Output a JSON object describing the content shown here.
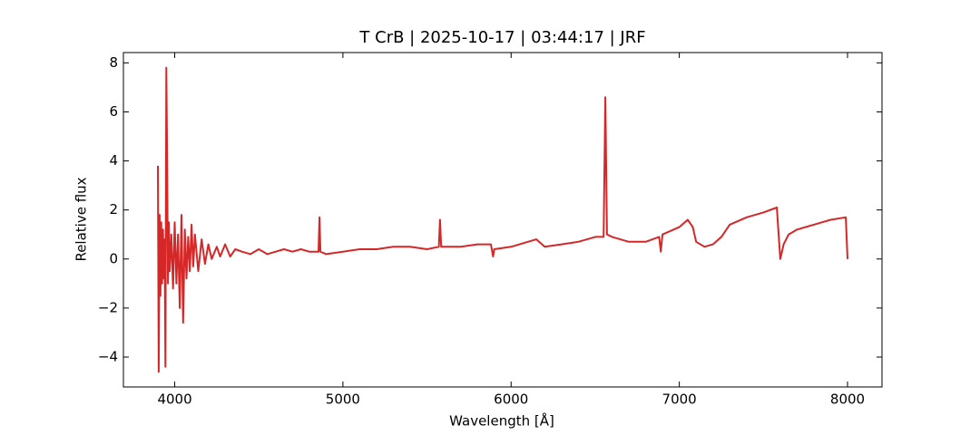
{
  "chart_data": {
    "type": "line",
    "title": "T CrB | 2025-10-17 | 03:44:17 | JRF",
    "xlabel": "Wavelength [Å]",
    "ylabel": "Relative flux",
    "xlim": [
      3695,
      8205
    ],
    "ylim": [
      -5.22,
      8.42
    ],
    "xticks": [
      4000,
      5000,
      6000,
      7000,
      8000
    ],
    "yticks": [
      {
        "value": -4,
        "label": "−4"
      },
      {
        "value": -2,
        "label": "−2"
      },
      0,
      2,
      4,
      6,
      8
    ],
    "grid": false,
    "series": [
      {
        "name": "T CrB",
        "color": "#d62728",
        "x": [
          3900,
          3905,
          3910,
          3915,
          3920,
          3925,
          3930,
          3935,
          3940,
          3945,
          3950,
          3955,
          3960,
          3965,
          3970,
          3980,
          3990,
          4000,
          4010,
          4020,
          4030,
          4040,
          4050,
          4060,
          4070,
          4080,
          4090,
          4100,
          4110,
          4120,
          4140,
          4160,
          4180,
          4200,
          4220,
          4250,
          4270,
          4300,
          4330,
          4360,
          4400,
          4450,
          4500,
          4550,
          4600,
          4650,
          4700,
          4750,
          4800,
          4855,
          4861,
          4866,
          4900,
          5000,
          5100,
          5200,
          5300,
          5400,
          5500,
          5570,
          5577,
          5584,
          5700,
          5800,
          5880,
          5893,
          5900,
          6000,
          6100,
          6150,
          6200,
          6300,
          6400,
          6500,
          6550,
          6560,
          6570,
          6600,
          6700,
          6800,
          6880,
          6890,
          6900,
          7000,
          7050,
          7080,
          7100,
          7150,
          7200,
          7250,
          7300,
          7400,
          7500,
          7580,
          7600,
          7620,
          7650,
          7700,
          7800,
          7850,
          7900,
          7990,
          8000
        ],
        "values": [
          3.8,
          -4.6,
          1.8,
          -1.5,
          1.5,
          -1.0,
          1.2,
          -0.8,
          0.8,
          -4.4,
          7.8,
          4.0,
          -1.0,
          1.5,
          -0.5,
          1.0,
          -1.2,
          1.5,
          -1.0,
          1.0,
          -2.0,
          1.8,
          -2.6,
          1.2,
          -0.8,
          0.9,
          -0.5,
          1.4,
          -0.3,
          1.0,
          -0.5,
          0.8,
          -0.2,
          0.6,
          0.0,
          0.5,
          0.1,
          0.6,
          0.1,
          0.4,
          0.3,
          0.2,
          0.4,
          0.2,
          0.3,
          0.4,
          0.3,
          0.4,
          0.3,
          0.3,
          1.7,
          0.3,
          0.2,
          0.3,
          0.4,
          0.4,
          0.5,
          0.5,
          0.4,
          0.5,
          1.6,
          0.5,
          0.5,
          0.6,
          0.6,
          0.1,
          0.4,
          0.5,
          0.7,
          0.8,
          0.5,
          0.6,
          0.7,
          0.9,
          0.9,
          6.6,
          1.0,
          0.9,
          0.7,
          0.7,
          0.9,
          0.3,
          1.0,
          1.3,
          1.6,
          1.3,
          0.7,
          0.5,
          0.6,
          0.9,
          1.4,
          1.7,
          1.9,
          2.1,
          0.0,
          0.6,
          1.0,
          1.2,
          1.4,
          1.5,
          1.6,
          1.7,
          0.0
        ]
      }
    ]
  }
}
